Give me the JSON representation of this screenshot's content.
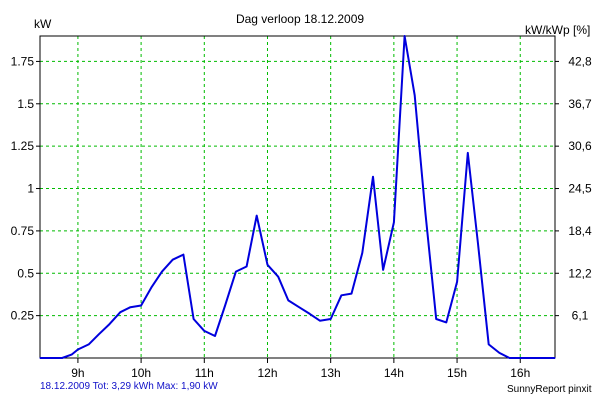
{
  "chart_data": {
    "type": "line",
    "title": "Dag  verloop 18.12.2009",
    "ylabel": "kW",
    "y2label": "kW/kWp [%]",
    "xlim": [
      8.4,
      16.55
    ],
    "ylim": [
      0,
      1.9
    ],
    "x_ticks": [
      9,
      10,
      11,
      12,
      13,
      14,
      15,
      16
    ],
    "x_tick_labels": [
      "9h",
      "10h",
      "11h",
      "12h",
      "13h",
      "14h",
      "15h",
      "16h"
    ],
    "y_ticks": [
      0.25,
      0.5,
      0.75,
      1,
      1.25,
      1.5,
      1.75
    ],
    "y_tick_labels": [
      "0.25",
      "0.5",
      "0.75",
      "1",
      "1.25",
      "1.5",
      "1.75"
    ],
    "y2_ticks": [
      6.1,
      12.2,
      18.4,
      24.5,
      30.6,
      36.7,
      42.8
    ],
    "y2_tick_labels": [
      "6,1",
      "12,2",
      "18,4",
      "24,5",
      "30,6",
      "36,7",
      "42,8"
    ],
    "grid": true,
    "colors": {
      "line": "#0000dd",
      "grid": "#00bb00",
      "footer": "#1010c8"
    },
    "series": [
      {
        "x": [
          8.4,
          8.75,
          8.9,
          9.0,
          9.17,
          9.33,
          9.5,
          9.67,
          9.83,
          10.0,
          10.17,
          10.33,
          10.5,
          10.67,
          10.83,
          11.0,
          11.17,
          11.33,
          11.5,
          11.67,
          11.83,
          12.0,
          12.17,
          12.33,
          12.5,
          12.67,
          12.83,
          13.0,
          13.17,
          13.33,
          13.5,
          13.67,
          13.83,
          14.0,
          14.17,
          14.33,
          14.5,
          14.67,
          14.83,
          15.0,
          15.17,
          15.33,
          15.5,
          15.67,
          15.83,
          16.0,
          16.17,
          16.55
        ],
        "y": [
          0.0,
          0.0,
          0.02,
          0.05,
          0.08,
          0.14,
          0.2,
          0.27,
          0.3,
          0.31,
          0.42,
          0.51,
          0.58,
          0.61,
          0.23,
          0.16,
          0.13,
          0.31,
          0.51,
          0.54,
          0.84,
          0.55,
          0.48,
          0.34,
          0.3,
          0.26,
          0.22,
          0.23,
          0.37,
          0.38,
          0.62,
          1.07,
          0.52,
          0.8,
          1.9,
          1.55,
          0.85,
          0.23,
          0.21,
          0.45,
          1.21,
          0.68,
          0.08,
          0.03,
          0.0,
          0.0,
          0.0,
          0.0
        ]
      }
    ]
  },
  "footer": {
    "stats": "18.12.2009 Tot: 3,29 kWh Max: 1,90 kW",
    "brand": "SunnyReport pinxit"
  }
}
